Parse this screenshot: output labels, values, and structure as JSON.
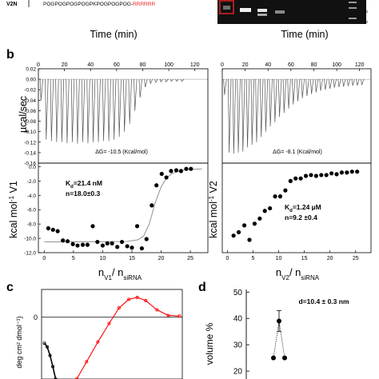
{
  "header": {
    "row_label": "V2N",
    "sequence_black": "POGPOGPOGPOGPKPOGPOGPOG-",
    "sequence_red": "RRRRRR",
    "gel_markers": [
      "20",
      "10"
    ]
  },
  "panels": {
    "b": "b",
    "c": "c",
    "d": "d"
  },
  "chart_data": [
    {
      "type": "line",
      "panel": "b-left-top",
      "title": "",
      "xlabel": "Time (min)",
      "ylabel": "µcal/sec",
      "xlim": [
        0,
        130
      ],
      "ylim": [
        -0.16,
        0.02
      ],
      "xticks": [
        "0",
        "20",
        "40",
        "60",
        "80",
        "100",
        "120"
      ],
      "yticks": [
        "0.02",
        "0.00",
        "-0.02",
        "-0.04",
        "-0.06",
        "-0.08",
        "-0.10",
        "-0.12",
        "-0.14",
        "-0.16"
      ],
      "annotation": "ΔG= -10.5 (Kcal/mol)",
      "peaks": [
        {
          "t": 2,
          "depth": -0.04
        },
        {
          "t": 6,
          "depth": -0.115
        },
        {
          "t": 10,
          "depth": -0.118
        },
        {
          "t": 14,
          "depth": -0.12
        },
        {
          "t": 18,
          "depth": -0.12
        },
        {
          "t": 22,
          "depth": -0.122
        },
        {
          "t": 26,
          "depth": -0.12
        },
        {
          "t": 30,
          "depth": -0.123
        },
        {
          "t": 34,
          "depth": -0.12
        },
        {
          "t": 38,
          "depth": -0.122
        },
        {
          "t": 42,
          "depth": -0.12
        },
        {
          "t": 46,
          "depth": -0.12
        },
        {
          "t": 50,
          "depth": -0.118
        },
        {
          "t": 54,
          "depth": -0.118
        },
        {
          "t": 58,
          "depth": -0.115
        },
        {
          "t": 62,
          "depth": -0.11
        },
        {
          "t": 66,
          "depth": -0.1
        },
        {
          "t": 70,
          "depth": -0.085
        },
        {
          "t": 74,
          "depth": -0.06
        },
        {
          "t": 78,
          "depth": -0.035
        },
        {
          "t": 82,
          "depth": -0.015
        },
        {
          "t": 86,
          "depth": -0.008
        },
        {
          "t": 90,
          "depth": -0.006
        },
        {
          "t": 94,
          "depth": -0.005
        },
        {
          "t": 98,
          "depth": -0.005
        },
        {
          "t": 102,
          "depth": -0.004
        },
        {
          "t": 106,
          "depth": -0.004
        },
        {
          "t": 110,
          "depth": -0.004
        }
      ]
    },
    {
      "type": "scatter",
      "panel": "b-left-bottom",
      "title": "",
      "xlabel": "nV1/ nsiRNA",
      "xlabel_parts": [
        "n",
        "V1",
        "/ n",
        "siRNA"
      ],
      "ylabel": "kcal mol-1 V1",
      "ylabel_parts": [
        "kcal mol",
        "-1",
        " V1"
      ],
      "xlim": [
        -1,
        28
      ],
      "ylim": [
        -12.0,
        0.5
      ],
      "xticks": [
        "0",
        "5",
        "10",
        "15",
        "20",
        "25"
      ],
      "yticks": [
        "0.0",
        "-2.0",
        "-4.0",
        "-6.0",
        "-8.0",
        "-10.0",
        "-12.0"
      ],
      "annotation_kd": "Kd=21.4 nM",
      "annotation_kd_parts": [
        "K",
        "d",
        "=21.4 nM"
      ],
      "annotation_n": "n=18.0±0.3",
      "points": [
        {
          "x": 0.7,
          "y": -8.6
        },
        {
          "x": 1.5,
          "y": -8.8
        },
        {
          "x": 2.3,
          "y": -9.0
        },
        {
          "x": 3.2,
          "y": -10.3
        },
        {
          "x": 4.0,
          "y": -10.4
        },
        {
          "x": 4.9,
          "y": -10.8
        },
        {
          "x": 5.7,
          "y": -11.0
        },
        {
          "x": 6.6,
          "y": -10.9
        },
        {
          "x": 7.4,
          "y": -10.9
        },
        {
          "x": 8.3,
          "y": -8.3
        },
        {
          "x": 9.1,
          "y": -10.5
        },
        {
          "x": 10.0,
          "y": -11.0
        },
        {
          "x": 10.8,
          "y": -10.7
        },
        {
          "x": 11.6,
          "y": -10.7
        },
        {
          "x": 12.5,
          "y": -11.2
        },
        {
          "x": 13.3,
          "y": -10.5
        },
        {
          "x": 14.2,
          "y": -11.1
        },
        {
          "x": 15.0,
          "y": -11.3
        },
        {
          "x": 15.9,
          "y": -8.3
        },
        {
          "x": 16.7,
          "y": -11.4
        },
        {
          "x": 17.5,
          "y": -10.1
        },
        {
          "x": 18.4,
          "y": -5.4
        },
        {
          "x": 19.2,
          "y": -2.6
        },
        {
          "x": 20.1,
          "y": -1.0
        },
        {
          "x": 20.9,
          "y": -1.5
        },
        {
          "x": 21.7,
          "y": -0.6
        },
        {
          "x": 22.6,
          "y": -0.5
        },
        {
          "x": 23.4,
          "y": -0.6
        },
        {
          "x": 24.3,
          "y": -0.3
        },
        {
          "x": 25.1,
          "y": -0.3
        }
      ],
      "fit": [
        {
          "x": 0,
          "y": -10.5
        },
        {
          "x": 14,
          "y": -10.45
        },
        {
          "x": 16,
          "y": -10.2
        },
        {
          "x": 17,
          "y": -9.7
        },
        {
          "x": 18,
          "y": -7.9
        },
        {
          "x": 19,
          "y": -5.0
        },
        {
          "x": 20,
          "y": -2.8
        },
        {
          "x": 21,
          "y": -1.5
        },
        {
          "x": 22,
          "y": -0.9
        },
        {
          "x": 24,
          "y": -0.45
        },
        {
          "x": 27,
          "y": -0.3
        }
      ]
    },
    {
      "type": "line",
      "panel": "b-right-top",
      "title": "",
      "xlabel": "Time (min)",
      "ylabel": "",
      "xlim": [
        0,
        130
      ],
      "ylim": [
        -0.16,
        0.02
      ],
      "xticks": [
        "0",
        "20",
        "40",
        "60",
        "80",
        "100",
        "120"
      ],
      "yticks": [],
      "annotation": "ΔG= -8.1 (Kcal/mol)",
      "peaks": [
        {
          "t": 2,
          "depth": -0.03
        },
        {
          "t": 6,
          "depth": -0.14
        },
        {
          "t": 10,
          "depth": -0.142
        },
        {
          "t": 14,
          "depth": -0.14
        },
        {
          "t": 18,
          "depth": -0.138
        },
        {
          "t": 22,
          "depth": -0.13
        },
        {
          "t": 26,
          "depth": -0.125
        },
        {
          "t": 30,
          "depth": -0.12
        },
        {
          "t": 34,
          "depth": -0.11
        },
        {
          "t": 38,
          "depth": -0.1
        },
        {
          "t": 42,
          "depth": -0.09
        },
        {
          "t": 46,
          "depth": -0.082
        },
        {
          "t": 50,
          "depth": -0.072
        },
        {
          "t": 54,
          "depth": -0.064
        },
        {
          "t": 58,
          "depth": -0.056
        },
        {
          "t": 62,
          "depth": -0.048
        },
        {
          "t": 66,
          "depth": -0.042
        },
        {
          "t": 70,
          "depth": -0.036
        },
        {
          "t": 74,
          "depth": -0.032
        },
        {
          "t": 78,
          "depth": -0.028
        },
        {
          "t": 82,
          "depth": -0.025
        },
        {
          "t": 86,
          "depth": -0.022
        },
        {
          "t": 90,
          "depth": -0.02
        },
        {
          "t": 94,
          "depth": -0.018
        },
        {
          "t": 98,
          "depth": -0.016
        },
        {
          "t": 102,
          "depth": -0.015
        },
        {
          "t": 106,
          "depth": -0.014
        },
        {
          "t": 110,
          "depth": -0.013
        },
        {
          "t": 114,
          "depth": -0.012
        },
        {
          "t": 118,
          "depth": -0.012
        },
        {
          "t": 122,
          "depth": -0.011
        }
      ]
    },
    {
      "type": "scatter",
      "panel": "b-right-bottom",
      "title": "",
      "xlabel": "nV2/ nsiRNA",
      "xlabel_parts": [
        "n",
        "V2",
        "/ n",
        "siRNA"
      ],
      "ylabel": "kcal mol-1 V2",
      "ylabel_parts": [
        "kcal mol",
        "-1",
        " V2"
      ],
      "xlim": [
        -1,
        28
      ],
      "ylim": [
        -10.0,
        0.5
      ],
      "xticks": [
        "0",
        "5",
        "10",
        "15",
        "20",
        "25"
      ],
      "yticks": [],
      "annotation_kd": "Kd=1.24 µM",
      "annotation_kd_parts": [
        "K",
        "d",
        "=1.24 µM"
      ],
      "annotation_n": "n=9.2 ±0.4",
      "points": [
        {
          "x": 1.2,
          "y": -8.0
        },
        {
          "x": 2.2,
          "y": -7.6
        },
        {
          "x": 3.3,
          "y": -6.8
        },
        {
          "x": 4.3,
          "y": -8.5
        },
        {
          "x": 5.3,
          "y": -6.6
        },
        {
          "x": 6.3,
          "y": -6.0
        },
        {
          "x": 7.3,
          "y": -5.1
        },
        {
          "x": 8.3,
          "y": -4.8
        },
        {
          "x": 9.3,
          "y": -3.4
        },
        {
          "x": 10.3,
          "y": -3.4
        },
        {
          "x": 11.3,
          "y": -2.7
        },
        {
          "x": 12.3,
          "y": -1.6
        },
        {
          "x": 13.3,
          "y": -1.3
        },
        {
          "x": 14.3,
          "y": -1.3
        },
        {
          "x": 15.3,
          "y": -1.0
        },
        {
          "x": 16.3,
          "y": -0.9
        },
        {
          "x": 17.3,
          "y": -1.0
        },
        {
          "x": 18.3,
          "y": -0.9
        },
        {
          "x": 19.3,
          "y": -0.9
        },
        {
          "x": 20.3,
          "y": -0.7
        },
        {
          "x": 21.3,
          "y": -0.8
        },
        {
          "x": 22.3,
          "y": -0.6
        },
        {
          "x": 23.3,
          "y": -0.6
        },
        {
          "x": 24.3,
          "y": -0.5
        },
        {
          "x": 25.3,
          "y": -0.5
        }
      ]
    },
    {
      "type": "line",
      "panel": "c",
      "title": "",
      "xlabel": "",
      "ylabel": "deg cm2 dmol-1",
      "ylabel_text": "deg cm² dmol⁻¹)",
      "xlim": [
        0,
        100
      ],
      "ylim": [
        -1.0,
        0.45
      ],
      "yticks": [
        "0"
      ],
      "series": [
        {
          "color": "#000000",
          "values": [
            {
              "x": 2,
              "y": -0.42
            },
            {
              "x": 4,
              "y": -0.48
            },
            {
              "x": 6,
              "y": -0.62
            },
            {
              "x": 8,
              "y": -0.8
            },
            {
              "x": 10,
              "y": -1.0
            }
          ]
        },
        {
          "color": "#ff0000",
          "values": [
            {
              "x": 25,
              "y": -1.0
            },
            {
              "x": 32,
              "y": -0.72
            },
            {
              "x": 40,
              "y": -0.4
            },
            {
              "x": 48,
              "y": -0.1
            },
            {
              "x": 55,
              "y": 0.15
            },
            {
              "x": 62,
              "y": 0.29
            },
            {
              "x": 68,
              "y": 0.32
            },
            {
              "x": 74,
              "y": 0.27
            },
            {
              "x": 82,
              "y": 0.12
            },
            {
              "x": 90,
              "y": 0.03
            },
            {
              "x": 98,
              "y": 0.02
            }
          ]
        }
      ]
    },
    {
      "type": "scatter",
      "panel": "d",
      "title": "",
      "xlabel": "",
      "ylabel": "volume %",
      "yticks": [
        "50",
        "40",
        "30",
        "20"
      ],
      "ylim": [
        17,
        51
      ],
      "annotation": "d=10.4 ± 0.3 nm",
      "points": [
        {
          "x": 0,
          "y": 25.0
        },
        {
          "x": 1,
          "y": 39.0,
          "err": 4.0
        },
        {
          "x": 2,
          "y": 25.0
        }
      ]
    }
  ]
}
